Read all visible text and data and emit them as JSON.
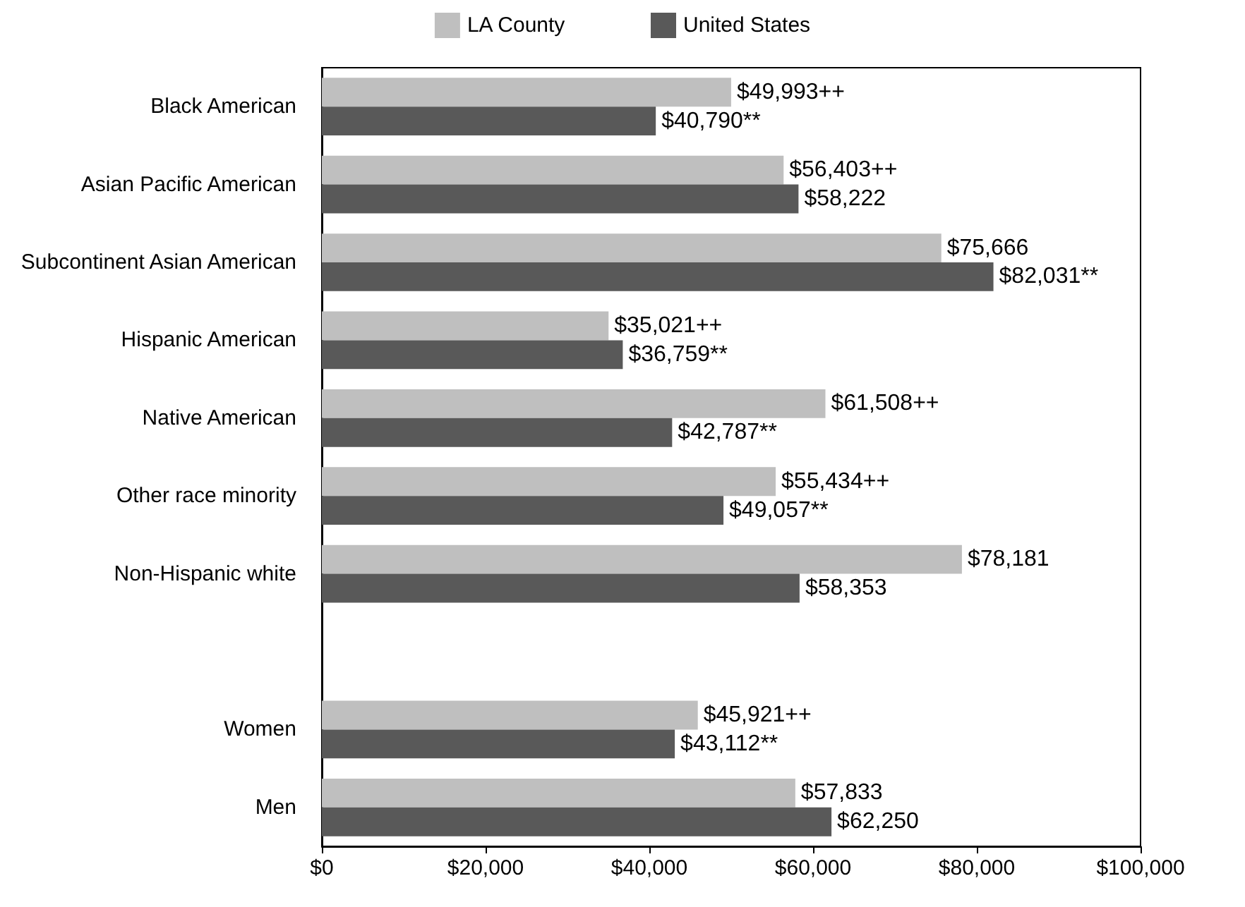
{
  "chart_data": {
    "type": "bar",
    "orientation": "horizontal",
    "categories": [
      "Black American",
      "Asian Pacific American",
      "Subcontinent Asian American",
      "Hispanic American",
      "Native American",
      "Other race minority",
      "Non-Hispanic white",
      null,
      "Women",
      "Men"
    ],
    "series": [
      {
        "name": "LA County",
        "color": "#bfbfbf",
        "values": [
          49993,
          56403,
          75666,
          35021,
          61508,
          55434,
          78181,
          null,
          45921,
          57833
        ],
        "value_labels": [
          "$49,993++",
          "$56,403++",
          "$75,666",
          "$35,021++",
          "$61,508++",
          "$55,434++",
          "$78,181",
          null,
          "$45,921++",
          "$57,833"
        ]
      },
      {
        "name": "United States",
        "color": "#595959",
        "values": [
          40790,
          58222,
          82031,
          36759,
          42787,
          49057,
          58353,
          null,
          43112,
          62250
        ],
        "value_labels": [
          "$40,790**",
          "$58,222",
          "$82,031**",
          "$36,759**",
          "$42,787**",
          "$49,057**",
          "$58,353",
          null,
          "$43,112**",
          "$62,250"
        ]
      }
    ],
    "xlim": [
      0,
      100000
    ],
    "xticks": [
      {
        "value": 0,
        "label": "$0"
      },
      {
        "value": 20000,
        "label": "$20,000"
      },
      {
        "value": 40000,
        "label": "$40,000"
      },
      {
        "value": 60000,
        "label": "$60,000"
      },
      {
        "value": 80000,
        "label": "$80,000"
      },
      {
        "value": 100000,
        "label": "$100,000"
      }
    ],
    "grid": false,
    "legend": "top"
  }
}
